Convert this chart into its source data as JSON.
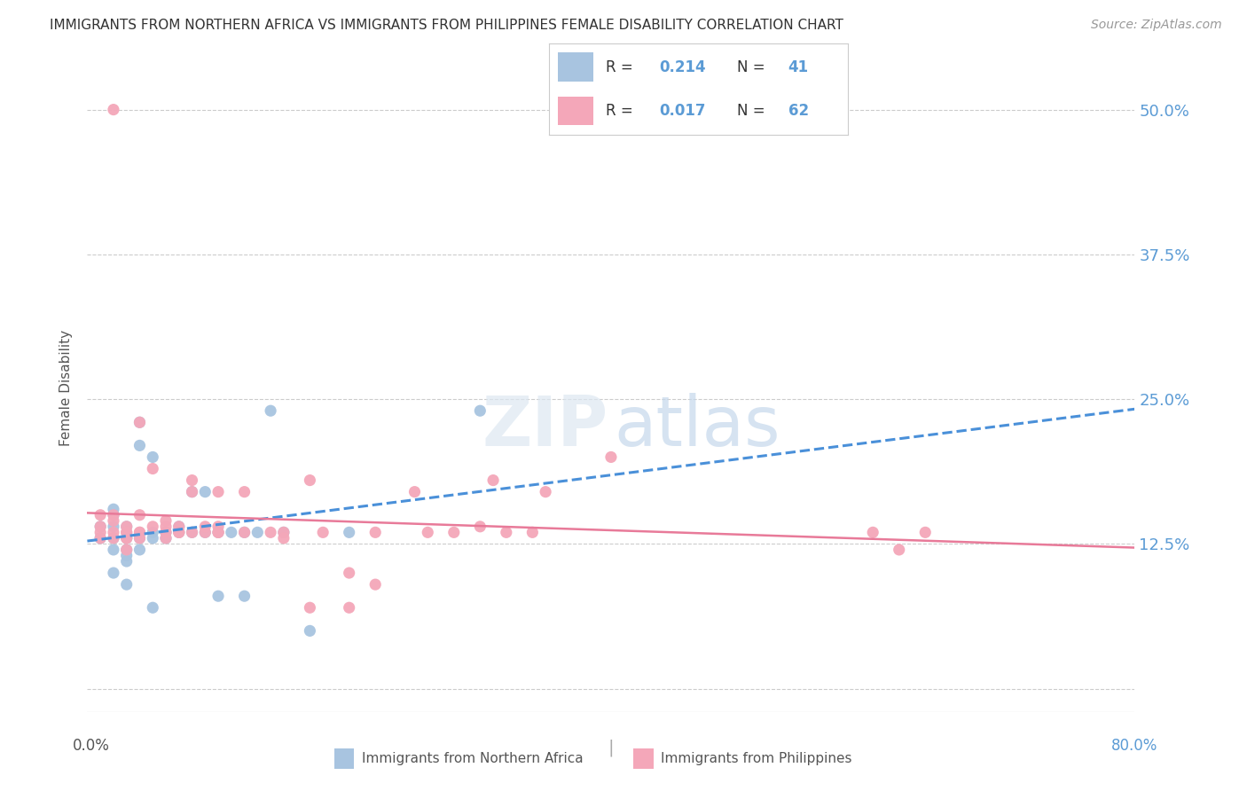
{
  "title": "IMMIGRANTS FROM NORTHERN AFRICA VS IMMIGRANTS FROM PHILIPPINES FEMALE DISABILITY CORRELATION CHART",
  "source": "Source: ZipAtlas.com",
  "ylabel": "Female Disability",
  "y_ticks": [
    0.0,
    0.125,
    0.25,
    0.375,
    0.5
  ],
  "y_tick_labels": [
    "",
    "12.5%",
    "25.0%",
    "37.5%",
    "50.0%"
  ],
  "x_range": [
    0.0,
    0.8
  ],
  "y_range": [
    -0.02,
    0.54
  ],
  "series1_color": "#a8c4e0",
  "series2_color": "#f4a7b9",
  "trendline1_color": "#4a90d9",
  "trendline2_color": "#e87a99",
  "label1": "Immigrants from Northern Africa",
  "label2": "Immigrants from Philippines",
  "background_color": "#ffffff",
  "grid_color": "#cccccc",
  "title_color": "#333333",
  "axis_label_color": "#5b9bd5",
  "series1_x": [
    0.01,
    0.01,
    0.02,
    0.02,
    0.02,
    0.02,
    0.02,
    0.02,
    0.03,
    0.03,
    0.03,
    0.03,
    0.03,
    0.03,
    0.04,
    0.04,
    0.04,
    0.04,
    0.05,
    0.05,
    0.05,
    0.05,
    0.06,
    0.06,
    0.07,
    0.07,
    0.08,
    0.08,
    0.09,
    0.09,
    0.1,
    0.1,
    0.11,
    0.12,
    0.12,
    0.13,
    0.14,
    0.15,
    0.17,
    0.2,
    0.3
  ],
  "series1_y": [
    0.13,
    0.14,
    0.15,
    0.155,
    0.14,
    0.13,
    0.12,
    0.1,
    0.14,
    0.13,
    0.12,
    0.115,
    0.11,
    0.09,
    0.21,
    0.23,
    0.13,
    0.12,
    0.2,
    0.135,
    0.13,
    0.07,
    0.135,
    0.13,
    0.135,
    0.14,
    0.17,
    0.135,
    0.17,
    0.135,
    0.135,
    0.08,
    0.135,
    0.08,
    0.135,
    0.135,
    0.24,
    0.135,
    0.05,
    0.135,
    0.24
  ],
  "series2_x": [
    0.01,
    0.01,
    0.01,
    0.01,
    0.02,
    0.02,
    0.02,
    0.02,
    0.02,
    0.03,
    0.03,
    0.03,
    0.03,
    0.03,
    0.03,
    0.04,
    0.04,
    0.04,
    0.04,
    0.04,
    0.05,
    0.05,
    0.06,
    0.06,
    0.06,
    0.06,
    0.07,
    0.07,
    0.07,
    0.08,
    0.08,
    0.08,
    0.09,
    0.09,
    0.1,
    0.1,
    0.1,
    0.1,
    0.12,
    0.12,
    0.14,
    0.15,
    0.15,
    0.17,
    0.17,
    0.18,
    0.2,
    0.2,
    0.22,
    0.22,
    0.25,
    0.26,
    0.28,
    0.3,
    0.31,
    0.32,
    0.34,
    0.35,
    0.4,
    0.6,
    0.62,
    0.64
  ],
  "series2_y": [
    0.14,
    0.15,
    0.135,
    0.13,
    0.5,
    0.15,
    0.145,
    0.135,
    0.13,
    0.14,
    0.135,
    0.13,
    0.135,
    0.12,
    0.13,
    0.23,
    0.15,
    0.135,
    0.135,
    0.13,
    0.19,
    0.14,
    0.145,
    0.14,
    0.135,
    0.13,
    0.135,
    0.14,
    0.135,
    0.17,
    0.18,
    0.135,
    0.135,
    0.14,
    0.135,
    0.17,
    0.14,
    0.135,
    0.135,
    0.17,
    0.135,
    0.13,
    0.135,
    0.18,
    0.07,
    0.135,
    0.07,
    0.1,
    0.135,
    0.09,
    0.17,
    0.135,
    0.135,
    0.14,
    0.18,
    0.135,
    0.135,
    0.17,
    0.2,
    0.135,
    0.12,
    0.135
  ]
}
